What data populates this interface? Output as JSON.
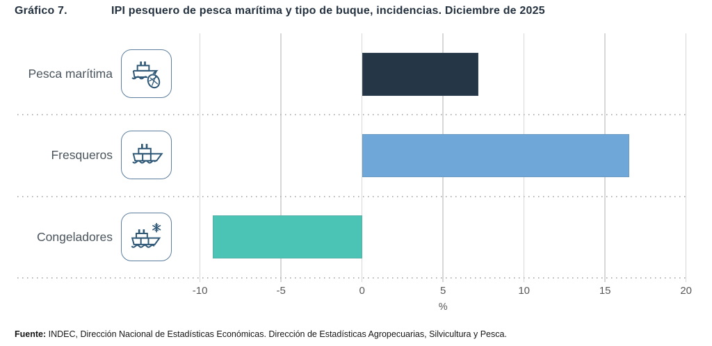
{
  "header": {
    "figure_label": "Gráfico 7.",
    "title": "IPI pesquero de pesca marítima y tipo de buque, incidencias. Diciembre de 2025"
  },
  "chart_data": {
    "type": "bar",
    "orientation": "horizontal",
    "title": "IPI pesquero de pesca marítima y tipo de buque, incidencias. Diciembre de 2025",
    "categories": [
      "Pesca marítima",
      "Fresqueros",
      "Congeladores"
    ],
    "values": [
      7.2,
      16.5,
      -9.2
    ],
    "bar_colors": [
      "#253746",
      "#6fa8d8",
      "#4cc4b5"
    ],
    "icons": [
      "fishing-vessel-net-icon",
      "fresh-vessel-icon",
      "freezer-vessel-snowflake-icon"
    ],
    "xlabel": "%",
    "x_ticks": [
      -10,
      -5,
      0,
      5,
      10,
      15,
      20
    ],
    "xlim": [
      -11.4,
      21
    ],
    "grid": "vertical solid gridlines; dotted horizontal row separators; legend none"
  },
  "footer": {
    "source_label": "Fuente:",
    "source_text": " INDEC, Dirección Nacional de Estadísticas Económicas. Dirección de Estadísticas Agropecuarias, Silvicultura y Pesca."
  },
  "colors": {
    "title_text": "#24313f",
    "category_text": "#4b555e",
    "tick_text": "#585858",
    "gridline": "#d7d7d7",
    "dotted_separator": "#b3b3b3",
    "icon_stroke": "#2f5877"
  }
}
